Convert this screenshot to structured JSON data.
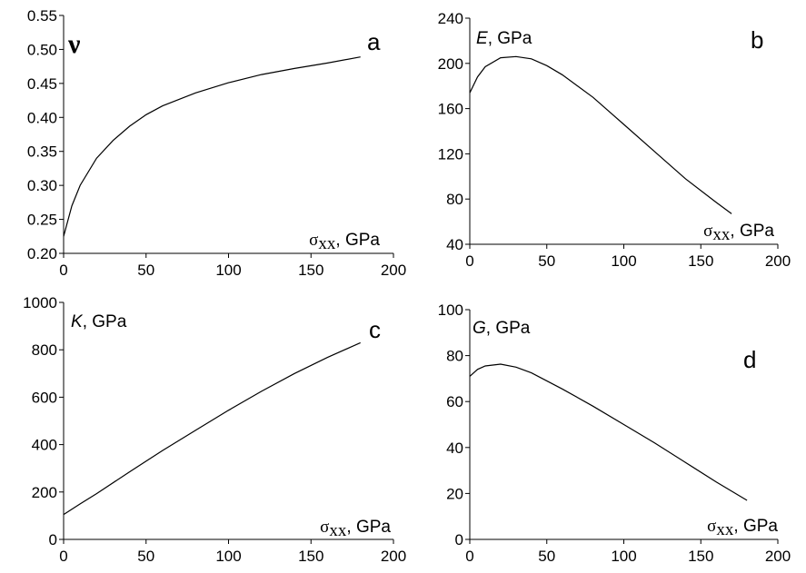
{
  "chart_data": [
    {
      "type": "line",
      "panel_letter": "a",
      "y_symbol": "ν",
      "y_unit": "",
      "x_symbol": "σ",
      "x_subscript": "xx",
      "x_unit": ", GPa",
      "xlim": [
        0,
        200
      ],
      "ylim": [
        0.2,
        0.55
      ],
      "xticks": [
        0,
        50,
        100,
        150,
        200
      ],
      "yticks": [
        0.2,
        0.25,
        0.3,
        0.35,
        0.4,
        0.45,
        0.5,
        0.55
      ],
      "ytick_labels": [
        "0.20",
        "0.25",
        "0.30",
        "0.35",
        "0.40",
        "0.45",
        "0.50",
        "0.55"
      ],
      "series": [
        {
          "x": [
            0,
            5,
            10,
            20,
            30,
            40,
            50,
            60,
            80,
            100,
            120,
            140,
            160,
            180
          ],
          "y": [
            0.225,
            0.27,
            0.3,
            0.34,
            0.366,
            0.387,
            0.404,
            0.417,
            0.436,
            0.451,
            0.463,
            0.472,
            0.48,
            0.489
          ]
        }
      ]
    },
    {
      "type": "line",
      "panel_letter": "b",
      "y_symbol": "E",
      "y_unit": ", GPa",
      "x_symbol": "σ",
      "x_subscript": "xx",
      "x_unit": ", GPa",
      "xlim": [
        0,
        200
      ],
      "ylim": [
        40,
        240
      ],
      "xticks": [
        0,
        50,
        100,
        150,
        200
      ],
      "yticks": [
        40,
        80,
        120,
        160,
        200,
        240
      ],
      "ytick_labels": [
        "40",
        "80",
        "120",
        "160",
        "200",
        "240"
      ],
      "series": [
        {
          "x": [
            0,
            5,
            10,
            20,
            30,
            40,
            50,
            60,
            80,
            100,
            120,
            140,
            160,
            170
          ],
          "y": [
            174,
            188,
            197,
            205,
            206,
            204,
            198,
            190,
            170,
            146,
            122,
            98,
            77,
            67
          ]
        }
      ]
    },
    {
      "type": "line",
      "panel_letter": "c",
      "y_symbol": "K",
      "y_unit": ", GPa",
      "x_symbol": "σ",
      "x_subscript": "xx",
      "x_unit": ", GPa",
      "xlim": [
        0,
        200
      ],
      "ylim": [
        0,
        1000
      ],
      "xticks": [
        0,
        50,
        100,
        150,
        200
      ],
      "yticks": [
        0,
        200,
        400,
        600,
        800,
        1000
      ],
      "ytick_labels": [
        "0",
        "200",
        "400",
        "600",
        "800",
        "1000"
      ],
      "series": [
        {
          "x": [
            0,
            10,
            20,
            40,
            60,
            80,
            100,
            120,
            140,
            160,
            180
          ],
          "y": [
            105,
            150,
            193,
            285,
            375,
            460,
            545,
            625,
            700,
            768,
            830
          ]
        }
      ]
    },
    {
      "type": "line",
      "panel_letter": "d",
      "y_symbol": "G",
      "y_unit": ", GPa",
      "x_symbol": "σ",
      "x_subscript": "xx",
      "x_unit": ", GPa",
      "xlim": [
        0,
        200
      ],
      "ylim": [
        0,
        100
      ],
      "xticks": [
        0,
        50,
        100,
        150,
        200
      ],
      "yticks": [
        0,
        20,
        40,
        60,
        80,
        100
      ],
      "ytick_labels": [
        "0",
        "20",
        "40",
        "60",
        "80",
        "100"
      ],
      "series": [
        {
          "x": [
            0,
            5,
            10,
            20,
            30,
            40,
            60,
            80,
            100,
            120,
            140,
            160,
            180
          ],
          "y": [
            71,
            74,
            75.5,
            76.3,
            75,
            72.5,
            65.5,
            58,
            50,
            42,
            33.5,
            25,
            17
          ]
        }
      ]
    }
  ]
}
